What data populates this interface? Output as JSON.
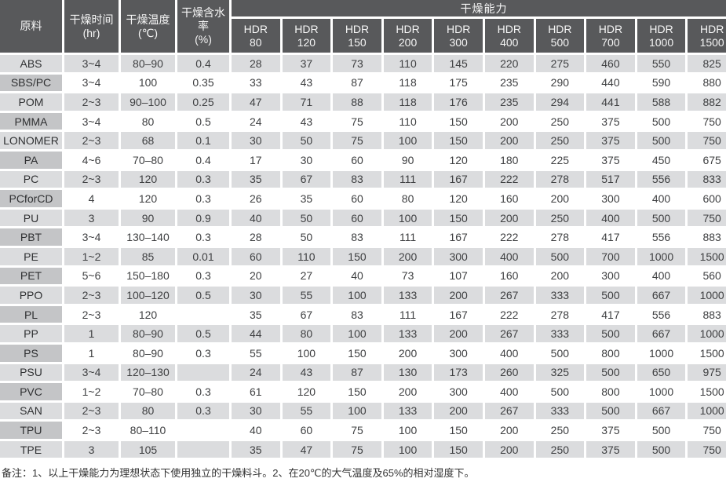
{
  "table": {
    "capacity_header": "干燥能力",
    "headers": [
      {
        "label": "原料",
        "unit": ""
      },
      {
        "label": "干燥时间",
        "unit": "(hr)"
      },
      {
        "label": "干燥温度",
        "unit": "(℃)"
      },
      {
        "label": "干燥含水率",
        "unit": "(%)"
      }
    ],
    "hdr_columns": [
      {
        "name": "HDR",
        "size": "80"
      },
      {
        "name": "HDR",
        "size": "120"
      },
      {
        "name": "HDR",
        "size": "150"
      },
      {
        "name": "HDR",
        "size": "200"
      },
      {
        "name": "HDR",
        "size": "300"
      },
      {
        "name": "HDR",
        "size": "400"
      },
      {
        "name": "HDR",
        "size": "500"
      },
      {
        "name": "HDR",
        "size": "700"
      },
      {
        "name": "HDR",
        "size": "1000"
      },
      {
        "name": "HDR",
        "size": "1500"
      }
    ],
    "rows": [
      {
        "material": "ABS",
        "time": "3~4",
        "temp": "80–90",
        "moisture": "0.4",
        "capacities": [
          28,
          37,
          73,
          110,
          145,
          220,
          275,
          460,
          550,
          825
        ]
      },
      {
        "material": "SBS/PC",
        "time": "3~4",
        "temp": "100",
        "moisture": "0.35",
        "capacities": [
          33,
          43,
          87,
          118,
          175,
          235,
          290,
          440,
          590,
          880
        ]
      },
      {
        "material": "POM",
        "time": "2~3",
        "temp": "90–100",
        "moisture": "0.25",
        "capacities": [
          47,
          71,
          88,
          118,
          176,
          235,
          294,
          441,
          588,
          882
        ]
      },
      {
        "material": "PMMA",
        "time": "3~4",
        "temp": "80",
        "moisture": "0.5",
        "capacities": [
          24,
          43,
          75,
          110,
          150,
          200,
          250,
          375,
          500,
          750
        ]
      },
      {
        "material": "LONOMER",
        "time": "2~3",
        "temp": "68",
        "moisture": "0.1",
        "capacities": [
          30,
          50,
          75,
          100,
          150,
          200,
          250,
          375,
          500,
          750
        ]
      },
      {
        "material": "PA",
        "time": "4~6",
        "temp": "70–80",
        "moisture": "0.4",
        "capacities": [
          17,
          30,
          60,
          90,
          120,
          180,
          225,
          375,
          450,
          675
        ]
      },
      {
        "material": "PC",
        "time": "2~3",
        "temp": "120",
        "moisture": "0.3",
        "capacities": [
          35,
          67,
          83,
          111,
          167,
          222,
          278,
          517,
          556,
          833
        ]
      },
      {
        "material": "PCforCD",
        "time": "4",
        "temp": "120",
        "moisture": "0.3",
        "capacities": [
          26,
          35,
          60,
          80,
          120,
          160,
          200,
          300,
          400,
          600
        ]
      },
      {
        "material": "PU",
        "time": "3",
        "temp": "90",
        "moisture": "0.9",
        "capacities": [
          40,
          50,
          60,
          100,
          150,
          200,
          250,
          400,
          500,
          750
        ]
      },
      {
        "material": "PBT",
        "time": "3~4",
        "temp": "130–140",
        "moisture": "0.3",
        "capacities": [
          28,
          50,
          83,
          111,
          167,
          222,
          278,
          417,
          556,
          883
        ]
      },
      {
        "material": "PE",
        "time": "1~2",
        "temp": "85",
        "moisture": "0.01",
        "capacities": [
          60,
          110,
          150,
          200,
          300,
          400,
          500,
          700,
          1000,
          1500
        ]
      },
      {
        "material": "PET",
        "time": "5~6",
        "temp": "150–180",
        "moisture": "0.3",
        "capacities": [
          20,
          27,
          40,
          73,
          107,
          160,
          200,
          300,
          400,
          560
        ]
      },
      {
        "material": "PPO",
        "time": "2~3",
        "temp": "100–120",
        "moisture": "0.5",
        "capacities": [
          30,
          55,
          100,
          133,
          200,
          267,
          333,
          500,
          667,
          1000
        ]
      },
      {
        "material": "PL",
        "time": "2~3",
        "temp": "120",
        "moisture": "",
        "capacities": [
          35,
          67,
          83,
          111,
          167,
          222,
          278,
          417,
          556,
          883
        ]
      },
      {
        "material": "PP",
        "time": "1",
        "temp": "80–90",
        "moisture": "0.5",
        "capacities": [
          44,
          80,
          100,
          133,
          200,
          267,
          333,
          500,
          667,
          1000
        ]
      },
      {
        "material": "PS",
        "time": "1",
        "temp": "80–90",
        "moisture": "0.3",
        "capacities": [
          55,
          100,
          150,
          200,
          300,
          400,
          500,
          800,
          1000,
          1500
        ]
      },
      {
        "material": "PSU",
        "time": "3~4",
        "temp": "120–130",
        "moisture": "",
        "capacities": [
          24,
          43,
          87,
          130,
          173,
          260,
          325,
          500,
          650,
          975
        ]
      },
      {
        "material": "PVC",
        "time": "1~2",
        "temp": "70–80",
        "moisture": "0.3",
        "capacities": [
          61,
          120,
          150,
          200,
          300,
          400,
          500,
          800,
          1000,
          1500
        ]
      },
      {
        "material": "SAN",
        "time": "2~3",
        "temp": "80",
        "moisture": "0.3",
        "capacities": [
          30,
          55,
          100,
          133,
          200,
          267,
          333,
          500,
          667,
          1000
        ]
      },
      {
        "material": "TPU",
        "time": "2~3",
        "temp": "80–110",
        "moisture": "",
        "capacities": [
          40,
          60,
          75,
          100,
          150,
          200,
          250,
          375,
          500,
          750
        ]
      },
      {
        "material": "TPE",
        "time": "3",
        "temp": "105",
        "moisture": "",
        "capacities": [
          35,
          47,
          75,
          100,
          150,
          200,
          250,
          375,
          500,
          750
        ]
      }
    ]
  },
  "footnote": "备注：1、以上干燥能力为理想状态下使用独立的干燥料斗。2、在20℃的大气温度及65%的相对湿度下。",
  "colors": {
    "header_bg": "#58595B",
    "header_text": "#F5F5F5",
    "material_col_bg": "#C4C5C7",
    "stripe_bg": "#DBDCDE",
    "row_bg": "#FFFFFF",
    "text": "#3F4042"
  }
}
